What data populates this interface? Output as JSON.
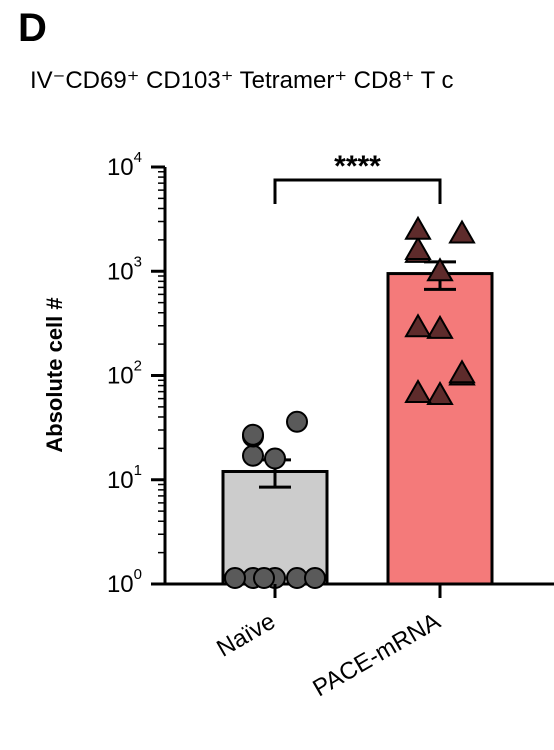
{
  "panel_label": "D",
  "chart_data": {
    "type": "bar",
    "title": "IV⁻CD69⁺ CD103⁺ Tetramer⁺ CD8⁺ T c",
    "ylabel": "Absolute cell #",
    "xlabel": "",
    "yscale": "log",
    "ylim": [
      1,
      10000
    ],
    "y_ticks": [
      {
        "base": "10",
        "exp": "0"
      },
      {
        "base": "10",
        "exp": "1"
      },
      {
        "base": "10",
        "exp": "2"
      },
      {
        "base": "10",
        "exp": "3"
      },
      {
        "base": "10",
        "exp": "4"
      }
    ],
    "categories": [
      "Naïve",
      "PACE-mRNA"
    ],
    "values": [
      12,
      950
    ],
    "error": [
      3.5,
      280
    ],
    "colors": [
      "#cccccc",
      "#f47a7a"
    ],
    "point_colors": [
      "#5a5a5a",
      "#5e2b2b"
    ],
    "points": [
      [
        1,
        1,
        1,
        1,
        1,
        1,
        16,
        17,
        26,
        27,
        36
      ],
      [
        65,
        68,
        100,
        105,
        280,
        290,
        1000,
        1500,
        1600,
        2300,
        2500
      ]
    ],
    "point_markers": [
      "circle",
      "triangle"
    ],
    "significance": "****"
  }
}
